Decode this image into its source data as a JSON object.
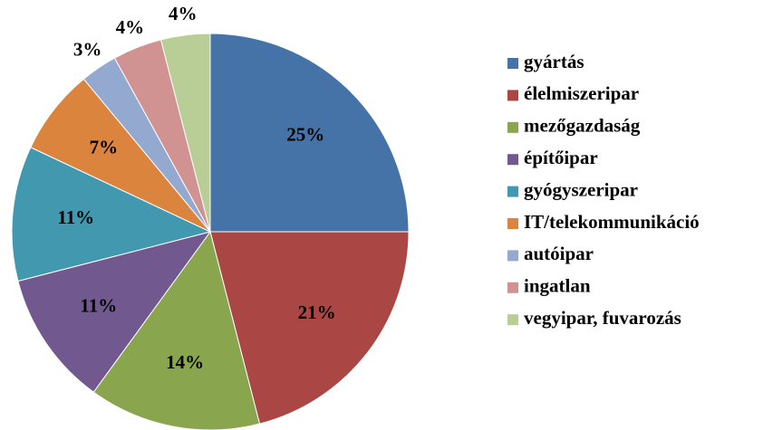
{
  "chart_data": {
    "type": "pie",
    "categories": [
      "gyártás",
      "élelmiszeripar",
      "mezőgazdaság",
      "építőipar",
      "gyógyszeripar",
      "IT/telekommunikáció",
      "autóipar",
      "ingatlan",
      "vegyipar, fuvarozás"
    ],
    "values": [
      25,
      21,
      14,
      11,
      11,
      7,
      3,
      4,
      4
    ],
    "value_labels": [
      "25%",
      "21%",
      "14%",
      "11%",
      "11%",
      "7%",
      "3%",
      "4%",
      "4%"
    ],
    "colors": [
      "#4572a7",
      "#aa4643",
      "#89a54e",
      "#71588f",
      "#4198af",
      "#db843d",
      "#93a9cf",
      "#d19392",
      "#b9cd96"
    ],
    "legend": "right"
  }
}
